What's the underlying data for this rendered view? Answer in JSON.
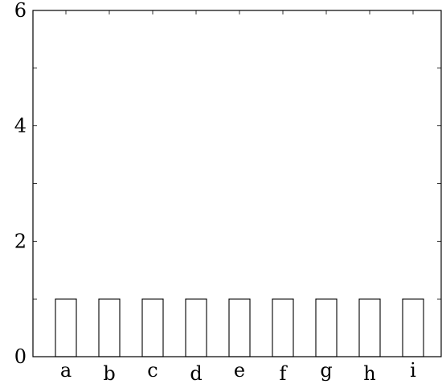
{
  "chart_data": {
    "type": "bar",
    "categories": [
      "a",
      "b",
      "c",
      "d",
      "e",
      "f",
      "g",
      "h",
      "i"
    ],
    "values": [
      1,
      1,
      1,
      1,
      1,
      1,
      1,
      1,
      1
    ],
    "title": "",
    "xlabel": "",
    "ylabel": "",
    "ylim": [
      0,
      6
    ],
    "y_ticks": [
      0,
      2,
      4,
      6
    ],
    "y_tick_labels": [
      "0",
      "2",
      "4",
      "6"
    ],
    "grid": false,
    "colors": {
      "bar_fill": "#ffffff",
      "bar_edge": "#000000",
      "axis": "#000000"
    }
  }
}
